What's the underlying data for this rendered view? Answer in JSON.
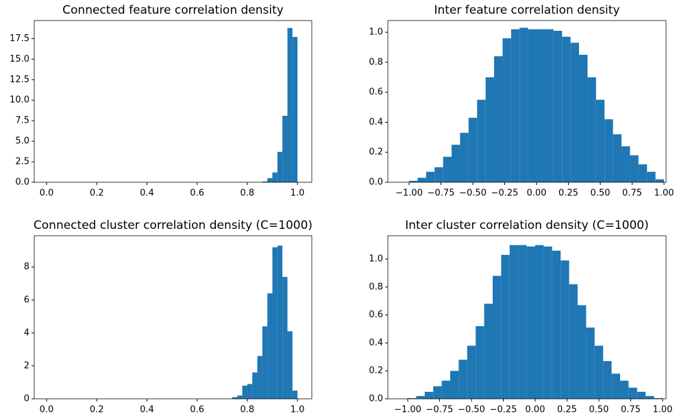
{
  "chart_data": [
    {
      "type": "histogram",
      "title": "Connected feature correlation density",
      "color": "#1f77b4",
      "bins": [
        0,
        0.02,
        0.04,
        0.06,
        0.08,
        0.1,
        0.12,
        0.14,
        0.16,
        0.18,
        0.2,
        0.22,
        0.24,
        0.26,
        0.28,
        0.3,
        0.32,
        0.34,
        0.36,
        0.38,
        0.4,
        0.42,
        0.44,
        0.46,
        0.48,
        0.5,
        0.52,
        0.54,
        0.56,
        0.58,
        0.6,
        0.62,
        0.64,
        0.66,
        0.68,
        0.7,
        0.72,
        0.74,
        0.76,
        0.78,
        0.8,
        0.82,
        0.84,
        0.86,
        0.88,
        0.9,
        0.92,
        0.94,
        0.96,
        0.98,
        1.0
      ],
      "values": [
        0,
        0,
        0,
        0,
        0,
        0,
        0,
        0,
        0,
        0,
        0,
        0,
        0,
        0,
        0,
        0,
        0,
        0,
        0,
        0,
        0,
        0,
        0,
        0,
        0,
        0,
        0,
        0,
        0,
        0,
        0,
        0,
        0,
        0,
        0,
        0,
        0,
        0,
        0,
        0,
        0,
        0,
        0,
        0.1,
        0.5,
        1.2,
        3.7,
        8.1,
        18.8,
        17.7
      ],
      "xlim": [
        -0.049,
        1.057
      ],
      "ylim": [
        0,
        19.7
      ],
      "xticks": [
        {
          "value": 0,
          "label": "0.0"
        },
        0.2,
        0.4,
        0.6,
        0.8,
        {
          "value": 1,
          "label": "1.0"
        }
      ],
      "yticks": [
        {
          "value": 0,
          "label": "0.0"
        },
        2.5,
        {
          "value": 5,
          "label": "5.0"
        },
        7.5,
        {
          "value": 10,
          "label": "10.0"
        },
        12.5,
        {
          "value": 15,
          "label": "15.0"
        },
        17.5
      ]
    },
    {
      "type": "histogram",
      "title": "Inter feature correlation density",
      "color": "#1f77b4",
      "bins": [
        -1,
        -0.9333,
        -0.8667,
        -0.8,
        -0.7333,
        -0.6667,
        -0.6,
        -0.5333,
        -0.4667,
        -0.4,
        -0.3333,
        -0.2667,
        -0.2,
        -0.1333,
        -0.0667,
        0,
        0.0667,
        0.1333,
        0.2,
        0.2667,
        0.3333,
        0.4,
        0.4667,
        0.5333,
        0.6,
        0.6667,
        0.7333,
        0.8,
        0.8667,
        0.9333,
        1
      ],
      "values": [
        0.01,
        0.03,
        0.07,
        0.1,
        0.17,
        0.25,
        0.33,
        0.43,
        0.55,
        0.7,
        0.84,
        0.96,
        1.02,
        1.03,
        1.02,
        1.02,
        1.02,
        1.01,
        0.97,
        0.93,
        0.85,
        0.7,
        0.55,
        0.42,
        0.32,
        0.24,
        0.18,
        0.12,
        0.07,
        0.02
      ],
      "xlim": [
        -1.167,
        1.016
      ],
      "ylim": [
        0,
        1.078
      ],
      "xticks": [
        {
          "value": -1,
          "label": "−1.00"
        },
        {
          "value": -0.75,
          "label": "−0.75"
        },
        {
          "value": -0.5,
          "label": "−0.50"
        },
        {
          "value": -0.25,
          "label": "−0.25"
        },
        {
          "value": 0,
          "label": "0.00"
        },
        0.25,
        {
          "value": 0.5,
          "label": "0.50"
        },
        0.75,
        {
          "value": 1,
          "label": "1.00"
        }
      ],
      "yticks": [
        {
          "value": 0,
          "label": "0.0"
        },
        0.2,
        0.4,
        0.6,
        0.8,
        {
          "value": 1,
          "label": "1.0"
        }
      ]
    },
    {
      "type": "histogram",
      "title": "Connected cluster correlation density (C=1000)",
      "color": "#1f77b4",
      "bins": [
        0,
        0.02,
        0.04,
        0.06,
        0.08,
        0.1,
        0.12,
        0.14,
        0.16,
        0.18,
        0.2,
        0.22,
        0.24,
        0.26,
        0.28,
        0.3,
        0.32,
        0.34,
        0.36,
        0.38,
        0.4,
        0.42,
        0.44,
        0.46,
        0.48,
        0.5,
        0.52,
        0.54,
        0.56,
        0.58,
        0.6,
        0.62,
        0.64,
        0.66,
        0.68,
        0.7,
        0.72,
        0.74,
        0.76,
        0.78,
        0.8,
        0.82,
        0.84,
        0.86,
        0.88,
        0.9,
        0.92,
        0.94,
        0.96,
        0.98,
        1.0
      ],
      "values": [
        0,
        0,
        0,
        0,
        0,
        0,
        0,
        0,
        0,
        0,
        0,
        0,
        0,
        0,
        0,
        0,
        0,
        0,
        0,
        0,
        0,
        0,
        0,
        0,
        0,
        0,
        0,
        0,
        0,
        0,
        0,
        0,
        0,
        0,
        0,
        0,
        0,
        0.1,
        0.2,
        0.8,
        0.9,
        1.6,
        2.6,
        4.4,
        6.4,
        9.2,
        9.3,
        7.4,
        4.1,
        0.5
      ],
      "xlim": [
        -0.049,
        1.057
      ],
      "ylim": [
        0,
        9.9
      ],
      "xticks": [
        {
          "value": 0,
          "label": "0.0"
        },
        0.2,
        0.4,
        0.6,
        0.8,
        {
          "value": 1,
          "label": "1.0"
        }
      ],
      "yticks": [
        0,
        2,
        4,
        6,
        8
      ]
    },
    {
      "type": "histogram",
      "title": "Inter cluster correlation density (C=1000)",
      "color": "#1f77b4",
      "bins": [
        -1,
        -0.9333,
        -0.8667,
        -0.8,
        -0.7333,
        -0.6667,
        -0.6,
        -0.5333,
        -0.4667,
        -0.4,
        -0.3333,
        -0.2667,
        -0.2,
        -0.1333,
        -0.0667,
        0,
        0.0667,
        0.1333,
        0.2,
        0.2667,
        0.3333,
        0.4,
        0.4667,
        0.5333,
        0.6,
        0.6667,
        0.7333,
        0.8,
        0.8667,
        0.9333,
        1
      ],
      "values": [
        0.005,
        0.02,
        0.05,
        0.09,
        0.13,
        0.2,
        0.28,
        0.38,
        0.52,
        0.68,
        0.88,
        1.03,
        1.1,
        1.1,
        1.09,
        1.1,
        1.09,
        1.06,
        0.99,
        0.82,
        0.67,
        0.51,
        0.38,
        0.27,
        0.18,
        0.13,
        0.08,
        0.05,
        0.02,
        0.005
      ],
      "xlim": [
        -1.156,
        1.027
      ],
      "ylim": [
        0,
        1.167
      ],
      "xticks": [
        {
          "value": -1,
          "label": "−1.00"
        },
        {
          "value": -0.75,
          "label": "−0.75"
        },
        {
          "value": -0.5,
          "label": "−0.50"
        },
        {
          "value": -0.25,
          "label": "−0.25"
        },
        {
          "value": 0,
          "label": "0.00"
        },
        0.25,
        {
          "value": 0.5,
          "label": "0.50"
        },
        0.75,
        {
          "value": 1,
          "label": "1.00"
        }
      ],
      "yticks": [
        {
          "value": 0,
          "label": "0.0"
        },
        0.2,
        0.4,
        0.6,
        0.8,
        {
          "value": 1,
          "label": "1.0"
        }
      ]
    }
  ]
}
